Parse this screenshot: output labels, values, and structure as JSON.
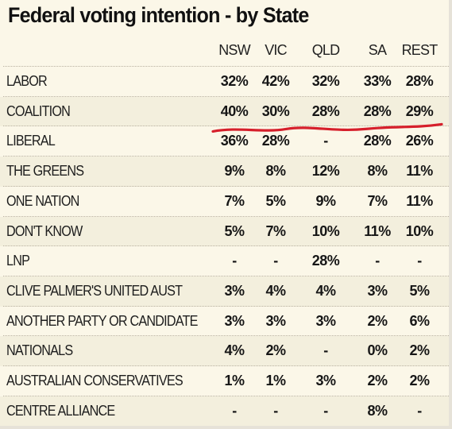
{
  "chart_data": {
    "type": "table",
    "title": "Federal voting intention - by State",
    "columns": [
      "NSW",
      "VIC",
      "QLD",
      "SA",
      "REST"
    ],
    "rows": [
      {
        "label": "LABOR",
        "values": [
          "32%",
          "42%",
          "32%",
          "33%",
          "28%"
        ]
      },
      {
        "label": "COALITION",
        "values": [
          "40%",
          "30%",
          "28%",
          "28%",
          "29%"
        ]
      },
      {
        "label": "LIBERAL",
        "values": [
          "36%",
          "28%",
          "-",
          "28%",
          "26%"
        ]
      },
      {
        "label": "THE GREENS",
        "values": [
          "9%",
          "8%",
          "12%",
          "8%",
          "11%"
        ]
      },
      {
        "label": "ONE NATION",
        "values": [
          "7%",
          "5%",
          "9%",
          "7%",
          "11%"
        ]
      },
      {
        "label": "DON'T KNOW",
        "values": [
          "5%",
          "7%",
          "10%",
          "11%",
          "10%"
        ]
      },
      {
        "label": "LNP",
        "values": [
          "-",
          "-",
          "28%",
          "-",
          "-"
        ]
      },
      {
        "label": "CLIVE PALMER'S UNITED AUST",
        "values": [
          "3%",
          "4%",
          "4%",
          "3%",
          "5%"
        ]
      },
      {
        "label": "ANOTHER PARTY OR CANDIDATE",
        "values": [
          "3%",
          "3%",
          "3%",
          "2%",
          "6%"
        ]
      },
      {
        "label": "NATIONALS",
        "values": [
          "4%",
          "2%",
          "-",
          "0%",
          "2%"
        ]
      },
      {
        "label": "AUSTRALIAN CONSERVATIVES",
        "values": [
          "1%",
          "1%",
          "3%",
          "2%",
          "2%"
        ]
      },
      {
        "label": "CENTRE ALLIANCE",
        "values": [
          "-",
          "-",
          "-",
          "8%",
          "-"
        ]
      }
    ],
    "highlighted_row": "COALITION",
    "highlight_color": "#d61f2b"
  }
}
